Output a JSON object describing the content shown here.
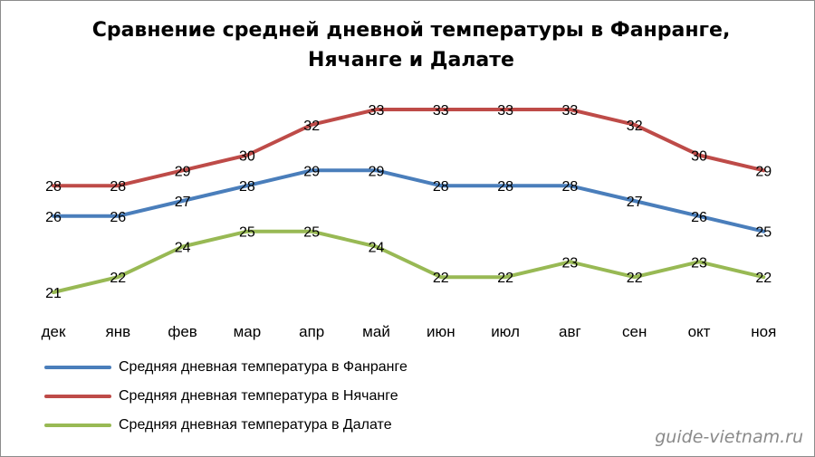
{
  "chart_data": {
    "type": "line",
    "title": "Сравнение средней дневной температуры в Фанранге, Нячанге и Далате",
    "title_lines": [
      "Сравнение средней дневной температуры в Фанранге,",
      "Нячанге и Далате"
    ],
    "categories": [
      "дек",
      "янв",
      "фев",
      "мар",
      "апр",
      "май",
      "июн",
      "июл",
      "авг",
      "сен",
      "окт",
      "ноя"
    ],
    "series": [
      {
        "name": "Средняя дневная температура в Фанранге",
        "color": "#4a7ebb",
        "values": [
          26,
          26,
          27,
          28,
          29,
          29,
          28,
          28,
          28,
          27,
          26,
          25
        ]
      },
      {
        "name": "Средняя дневная температура в Нячанге",
        "color": "#be4b48",
        "values": [
          28,
          28,
          29,
          30,
          32,
          33,
          33,
          33,
          33,
          32,
          30,
          29
        ]
      },
      {
        "name": "Средняя дневная температура в Далате",
        "color": "#98b954",
        "values": [
          21,
          22,
          24,
          25,
          25,
          24,
          22,
          22,
          23,
          22,
          23,
          22
        ]
      }
    ],
    "xlabel": "",
    "ylabel": "",
    "ylim": [
      21,
      33
    ],
    "grid": false,
    "data_labels": true,
    "legend_position": "bottom-left"
  },
  "watermark": "guide-vietnam.ru"
}
